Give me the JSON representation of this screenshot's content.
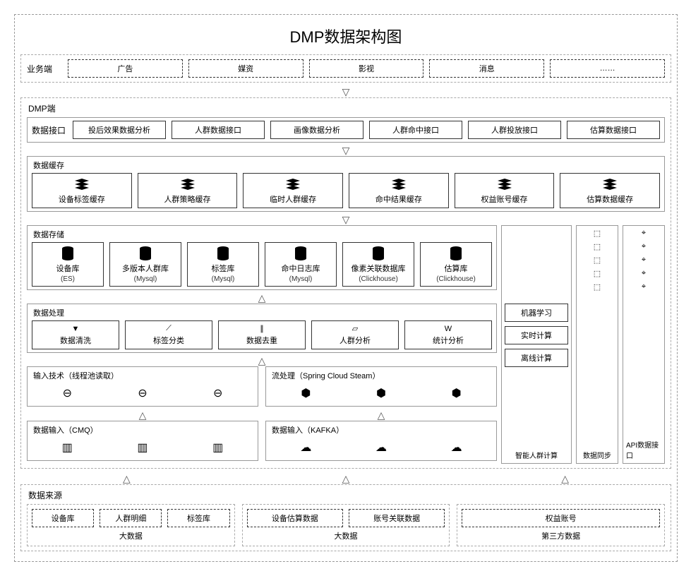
{
  "title": "DMP数据架构图",
  "colors": {
    "border": "#333333",
    "dash": "#999999",
    "bg": "#ffffff",
    "text": "#000000"
  },
  "business": {
    "label": "业务端",
    "items": [
      "广告",
      "媒资",
      "影视",
      "消息",
      "……"
    ]
  },
  "dmp": {
    "label": "DMP端"
  },
  "api_row": {
    "label": "数据接口",
    "items": [
      "投后效果数据分析",
      "人群数据接口",
      "画像数据分析",
      "人群命中接口",
      "人群投放接口",
      "估算数据接口"
    ]
  },
  "cache_row": {
    "label": "数据缓存",
    "items": [
      "设备标签缓存",
      "人群策略缓存",
      "临时人群缓存",
      "命中结果缓存",
      "权益账号缓存",
      "估算数据缓存"
    ]
  },
  "storage_row": {
    "label": "数据存储",
    "items": [
      {
        "name": "设备库",
        "sub": "(ES)"
      },
      {
        "name": "多版本人群库",
        "sub": "(Mysql)"
      },
      {
        "name": "标签库",
        "sub": "(Mysql)"
      },
      {
        "name": "命中日志库",
        "sub": "(Mysql)"
      },
      {
        "name": "像素关联数据库",
        "sub": "(Clickhouse)"
      },
      {
        "name": "估算库",
        "sub": "(Clickhouse)"
      }
    ]
  },
  "process_row": {
    "label": "数据处理",
    "items": [
      "数据清洗",
      "标签分类",
      "数据去重",
      "人群分析",
      "统计分析"
    ]
  },
  "input_tech": {
    "label": "输入技术（线程池读取）"
  },
  "stream": {
    "label": "流处理（Spring Cloud Steam）"
  },
  "input_cmq": {
    "label": "数据输入（CMQ）"
  },
  "input_kafka": {
    "label": "数据输入（KAFKA）"
  },
  "smart_compute": {
    "label": "智能人群计算",
    "items": [
      "机器学习",
      "实时计算",
      "离线计算"
    ]
  },
  "sync_col": {
    "label": "数据同步"
  },
  "api_col": {
    "label": "API数据接口"
  },
  "source": {
    "label": "数据来源",
    "groups": [
      {
        "title": "大数据",
        "items": [
          "设备库",
          "人群明细",
          "标签库"
        ]
      },
      {
        "title": "大数据",
        "items": [
          "设备估算数据",
          "账号关联数据"
        ]
      },
      {
        "title": "第三方数据",
        "items": [
          "权益账号"
        ]
      }
    ]
  }
}
